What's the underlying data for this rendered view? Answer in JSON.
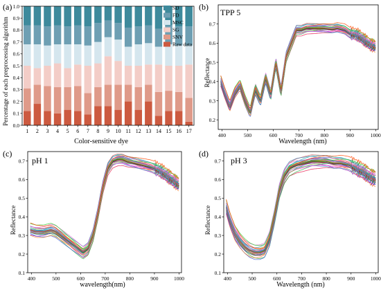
{
  "colors": {
    "SD": "#3e8a9c",
    "FD": "#6e9fb3",
    "MSC": "#d5e6ee",
    "SG": "#f3cdc7",
    "SNV": "#df9a89",
    "Raw data": "#cc5a40"
  },
  "chart_data": [
    {
      "type": "bar",
      "stacked": true,
      "panel_label": "(a)",
      "xlabel": "Color-sensitive dye",
      "ylabel": "Percentage of each preprocessing algorithm",
      "categories": [
        "1",
        "2",
        "3",
        "4",
        "5",
        "6",
        "7",
        "8",
        "9",
        "10",
        "11",
        "12",
        "13",
        "14",
        "15",
        "16",
        "17"
      ],
      "ylim": [
        0,
        1.0
      ],
      "yticks": [
        "0.0",
        "0.1",
        "0.2",
        "0.3",
        "0.4",
        "0.5",
        "0.6",
        "0.7",
        "0.8",
        "0.9",
        "1.0"
      ],
      "legend_position": "top-right",
      "series": [
        {
          "name": "Raw data",
          "values": [
            0.12,
            0.18,
            0.12,
            0.1,
            0.13,
            0.12,
            0.09,
            0.16,
            0.16,
            0.13,
            0.2,
            0.13,
            0.2,
            0.08,
            0.12,
            0.12,
            0.03
          ]
        },
        {
          "name": "SNV",
          "values": [
            0.19,
            0.16,
            0.21,
            0.22,
            0.19,
            0.21,
            0.18,
            0.16,
            0.18,
            0.21,
            0.14,
            0.19,
            0.14,
            0.2,
            0.17,
            0.16,
            0.2
          ]
        },
        {
          "name": "SG",
          "values": [
            0.19,
            0.14,
            0.17,
            0.2,
            0.16,
            0.18,
            0.23,
            0.2,
            0.24,
            0.2,
            0.16,
            0.18,
            0.17,
            0.23,
            0.21,
            0.22,
            0.28
          ]
        },
        {
          "name": "MSC",
          "values": [
            0.18,
            0.2,
            0.17,
            0.16,
            0.2,
            0.17,
            0.17,
            0.18,
            0.16,
            0.18,
            0.16,
            0.18,
            0.18,
            0.15,
            0.18,
            0.17,
            0.16
          ]
        },
        {
          "name": "FD",
          "values": [
            0.16,
            0.16,
            0.16,
            0.16,
            0.15,
            0.16,
            0.16,
            0.16,
            0.14,
            0.14,
            0.16,
            0.15,
            0.15,
            0.15,
            0.16,
            0.16,
            0.16
          ]
        },
        {
          "name": "SD",
          "values": [
            0.16,
            0.16,
            0.17,
            0.16,
            0.17,
            0.16,
            0.17,
            0.14,
            0.12,
            0.14,
            0.18,
            0.17,
            0.16,
            0.19,
            0.16,
            0.17,
            0.17
          ]
        }
      ]
    },
    {
      "type": "line",
      "panel_label": "(b)",
      "title": "TPP 5",
      "xlabel": "Wavelength (nm)",
      "ylabel": "Reflectance",
      "xlim": [
        385,
        1010
      ],
      "ylim": [
        0.15,
        0.8
      ],
      "xticks": [
        400,
        500,
        600,
        700,
        800,
        900,
        1000
      ],
      "yticks": [
        0.2,
        0.3,
        0.4,
        0.5,
        0.6,
        0.7
      ],
      "curve_count": 30,
      "spread": 0.025,
      "mean_curve": {
        "x": [
          395,
          410,
          430,
          450,
          470,
          490,
          510,
          530,
          550,
          570,
          590,
          610,
          630,
          650,
          670,
          690,
          710,
          730,
          750,
          780,
          800,
          830,
          850,
          880,
          900,
          930,
          950,
          980,
          1000
        ],
        "y": [
          0.4,
          0.34,
          0.27,
          0.34,
          0.38,
          0.3,
          0.24,
          0.36,
          0.3,
          0.42,
          0.33,
          0.5,
          0.35,
          0.53,
          0.6,
          0.67,
          0.67,
          0.68,
          0.68,
          0.68,
          0.68,
          0.675,
          0.68,
          0.67,
          0.65,
          0.64,
          0.62,
          0.59,
          0.58
        ]
      }
    },
    {
      "type": "line",
      "panel_label": "(c)",
      "title": "pH 1",
      "xlabel": "wavelength(nm)",
      "ylabel": "Reflectance",
      "xlim": [
        385,
        1010
      ],
      "ylim": [
        0.1,
        0.75
      ],
      "xticks": [
        400,
        500,
        600,
        700,
        800,
        900,
        1000
      ],
      "yticks": [
        0.1,
        0.2,
        0.3,
        0.4,
        0.5,
        0.6,
        0.7
      ],
      "curve_count": 30,
      "spread": 0.03,
      "mean_curve": {
        "x": [
          395,
          420,
          450,
          480,
          500,
          530,
          560,
          590,
          610,
          630,
          650,
          670,
          690,
          710,
          730,
          750,
          770,
          790,
          820,
          850,
          880,
          900,
          930,
          960,
          980,
          1000
        ],
        "y": [
          0.33,
          0.32,
          0.32,
          0.33,
          0.32,
          0.29,
          0.26,
          0.23,
          0.21,
          0.23,
          0.3,
          0.42,
          0.56,
          0.66,
          0.7,
          0.71,
          0.71,
          0.7,
          0.69,
          0.68,
          0.67,
          0.66,
          0.64,
          0.61,
          0.59,
          0.57
        ]
      }
    },
    {
      "type": "line",
      "panel_label": "(d)",
      "title": "pH 3",
      "xlabel": "Wavelength (nm)",
      "ylabel": "Reflectance",
      "xlim": [
        385,
        1010
      ],
      "ylim": [
        0.1,
        0.75
      ],
      "xticks": [
        400,
        500,
        600,
        700,
        800,
        900,
        1000
      ],
      "yticks": [
        0.1,
        0.2,
        0.3,
        0.4,
        0.5,
        0.6,
        0.7
      ],
      "curve_count": 30,
      "spread": 0.035,
      "mean_curve": {
        "x": [
          395,
          410,
          430,
          450,
          470,
          490,
          510,
          530,
          550,
          570,
          590,
          610,
          630,
          650,
          680,
          710,
          740,
          770,
          800,
          830,
          860,
          890,
          920,
          950,
          980,
          1000
        ],
        "y": [
          0.45,
          0.38,
          0.31,
          0.27,
          0.24,
          0.22,
          0.21,
          0.21,
          0.22,
          0.28,
          0.4,
          0.54,
          0.62,
          0.66,
          0.68,
          0.69,
          0.7,
          0.7,
          0.7,
          0.69,
          0.69,
          0.68,
          0.66,
          0.64,
          0.61,
          0.6
        ]
      }
    }
  ]
}
